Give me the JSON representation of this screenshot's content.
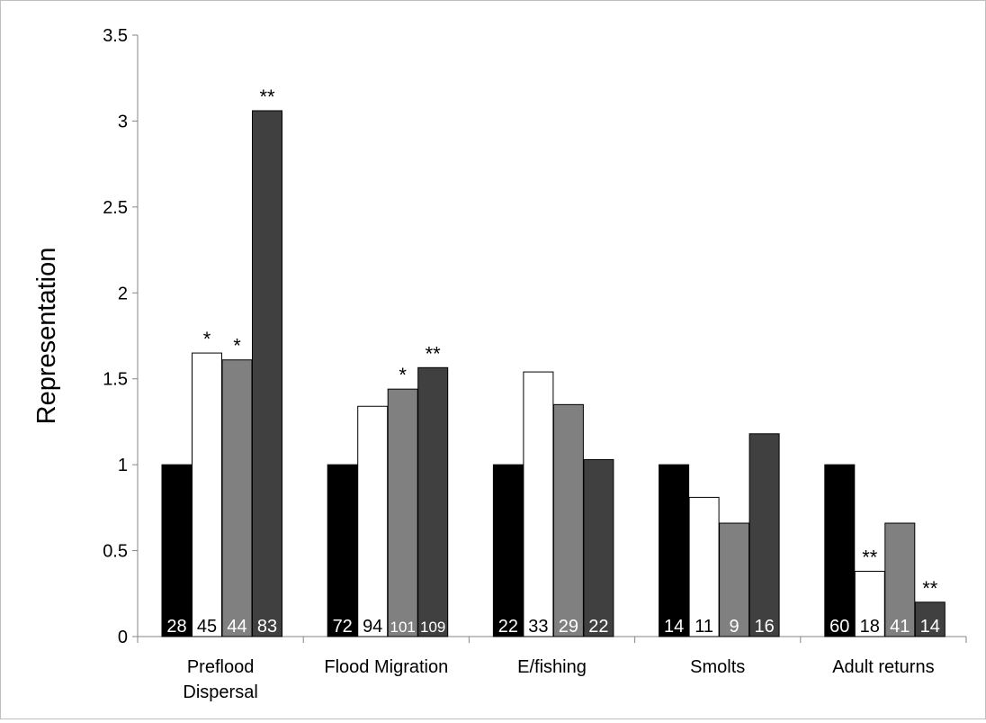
{
  "chart_data": {
    "type": "bar",
    "title": "",
    "xlabel": "",
    "ylabel": "Representation",
    "ylim": [
      0,
      3.5
    ],
    "yticks": [
      "0",
      "0.5",
      "1",
      "1.5",
      "2",
      "2.5",
      "3",
      "3.5"
    ],
    "grid": false,
    "legend": "none",
    "categories": [
      [
        "Preflood",
        "Dispersal"
      ],
      [
        "Flood Migration"
      ],
      [
        "E/fishing"
      ],
      [
        "Smolts"
      ],
      [
        "Adult returns"
      ]
    ],
    "series": [
      {
        "color": "#000000",
        "values": [
          1.0,
          1.0,
          1.0,
          1.0,
          1.0
        ],
        "counts": [
          "28",
          "72",
          "22",
          "14",
          "60"
        ],
        "marks": [
          "",
          "",
          "",
          "",
          ""
        ]
      },
      {
        "color": "#ffffff",
        "values": [
          1.65,
          1.34,
          1.54,
          0.81,
          0.38
        ],
        "counts": [
          "45",
          "94",
          "33",
          "11",
          "18"
        ],
        "marks": [
          "*",
          "",
          "",
          "",
          "**"
        ]
      },
      {
        "color": "#808080",
        "values": [
          1.61,
          1.44,
          1.35,
          0.66,
          0.66
        ],
        "counts": [
          "44",
          "101",
          "29",
          "9",
          "41"
        ],
        "marks": [
          "*",
          "*",
          "",
          "",
          ""
        ]
      },
      {
        "color": "#404040",
        "values": [
          3.06,
          1.565,
          1.03,
          1.18,
          0.2
        ],
        "counts": [
          "83",
          "109",
          "22",
          "16",
          "14"
        ],
        "marks": [
          "**",
          "**",
          "",
          "",
          "**"
        ]
      }
    ]
  }
}
